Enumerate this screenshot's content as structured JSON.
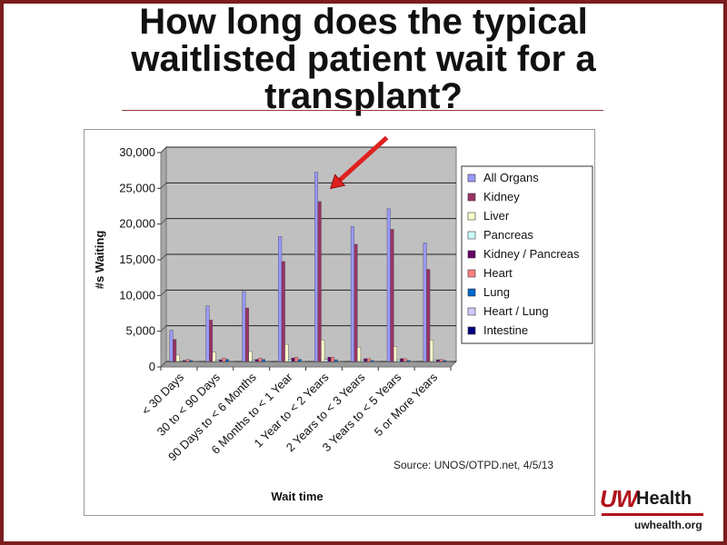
{
  "slide": {
    "title": "How long does the typical waitlisted patient wait for a transplant?"
  },
  "logo": {
    "brand": "UWHealth",
    "uw": "UW",
    "health": "Health",
    "url": "uwhealth.org"
  },
  "chart_data": {
    "type": "bar",
    "xlabel": "Wait time",
    "ylabel": "#s Waiting",
    "ylim": [
      0,
      30000
    ],
    "yticks": [
      "0",
      "5,000",
      "10,000",
      "15,000",
      "20,000",
      "25,000",
      "30,000"
    ],
    "grid": true,
    "legend_position": "right",
    "source": "Source: UNOS/OTPD.net, 4/5/13",
    "categories": [
      "< 30 Days",
      "30 to < 90 Days",
      "90 Days to < 6 Months",
      "6 Months to < 1 Year",
      "1 Year to < 2 Years",
      "2 Years to < 3 Years",
      "3 Years to < 5 Years",
      "5 or More Years"
    ],
    "series": [
      {
        "name": "All Organs",
        "color": "#9999ff",
        "values": [
          4400,
          7800,
          9800,
          17500,
          26500,
          18900,
          21400,
          16600
        ]
      },
      {
        "name": "Kidney",
        "color": "#993366",
        "values": [
          3100,
          5800,
          7500,
          14000,
          22400,
          16400,
          18500,
          12900
        ]
      },
      {
        "name": "Liver",
        "color": "#ffffcc",
        "values": [
          900,
          1300,
          1400,
          2400,
          3000,
          2000,
          2100,
          3000
        ]
      },
      {
        "name": "Pancreas",
        "color": "#ccffff",
        "values": [
          100,
          150,
          150,
          250,
          300,
          200,
          200,
          150
        ]
      },
      {
        "name": "Kidney / Pancreas",
        "color": "#660066",
        "values": [
          150,
          250,
          300,
          500,
          600,
          400,
          400,
          250
        ]
      },
      {
        "name": "Heart",
        "color": "#ff8080",
        "values": [
          300,
          500,
          500,
          600,
          600,
          400,
          400,
          300
        ]
      },
      {
        "name": "Lung",
        "color": "#0066cc",
        "values": [
          150,
          300,
          300,
          300,
          250,
          150,
          150,
          150
        ]
      },
      {
        "name": "Heart / Lung",
        "color": "#ccccff",
        "values": [
          20,
          20,
          20,
          30,
          40,
          30,
          40,
          50
        ]
      },
      {
        "name": "Intestine",
        "color": "#000080",
        "values": [
          20,
          30,
          30,
          40,
          40,
          30,
          30,
          40
        ]
      }
    ],
    "annotation": {
      "type": "arrow",
      "color": "#e02020",
      "points_to_category": "1 Year to < 2 Years"
    }
  }
}
